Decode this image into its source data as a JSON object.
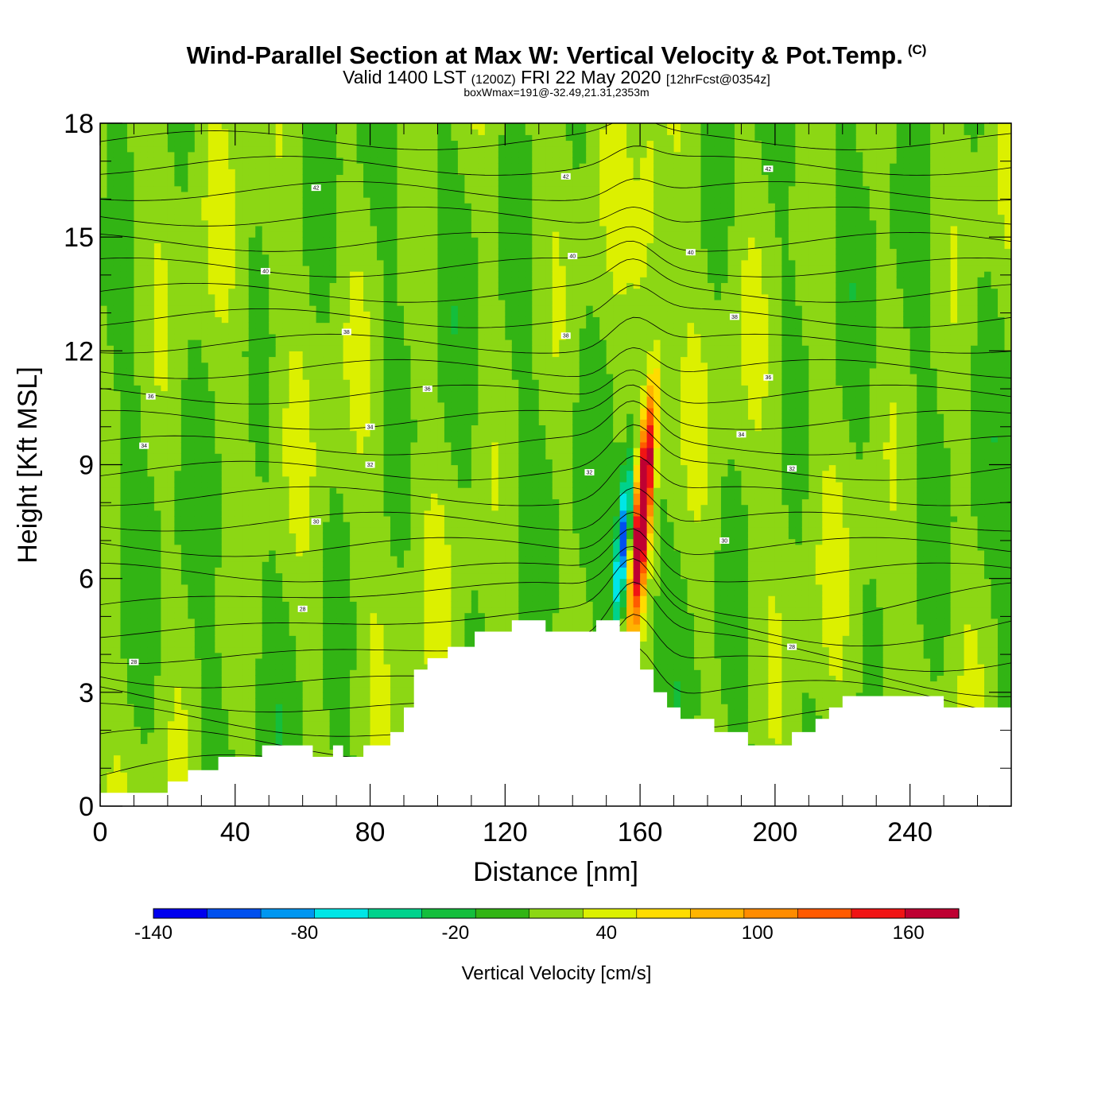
{
  "title": {
    "main": "Wind-Parallel Section at Max W: Vertical Velocity & Pot.Temp.",
    "copyright": "(C)",
    "valid_prefix": "Valid 1400 LST",
    "valid_utc": "(1200Z)",
    "valid_date": "FRI 22 May 2020",
    "forecast": "[12hrFcst@0354z]",
    "box_info": "boxWmax=191@-32.49,21.31,2353m"
  },
  "chart_data": {
    "type": "heatmap",
    "xlabel": "Distance [nm]",
    "ylabel": "Height [Kft MSL]",
    "xlim": [
      0,
      270
    ],
    "ylim": [
      0,
      18
    ],
    "xticks": [
      0,
      40,
      80,
      120,
      160,
      200,
      240
    ],
    "yticks": [
      0,
      3,
      6,
      9,
      12,
      15,
      18
    ],
    "colorbar": {
      "label": "Vertical Velocity [cm/s]",
      "ticks": [
        -140,
        -80,
        -20,
        40,
        100,
        160
      ],
      "range": [
        -140,
        180
      ],
      "step": 20,
      "colors": [
        "#0000ee",
        "#0050ee",
        "#0096f0",
        "#00e6e6",
        "#00d28c",
        "#14be3c",
        "#32b414",
        "#8cd714",
        "#dcf000",
        "#ffdc00",
        "#ffb400",
        "#ff8c00",
        "#ff5a00",
        "#f01414",
        "#be0032"
      ]
    },
    "terrain": [
      [
        0,
        0.35
      ],
      [
        20,
        0.35
      ],
      [
        20,
        0.65
      ],
      [
        26,
        0.65
      ],
      [
        26,
        0.95
      ],
      [
        35,
        0.95
      ],
      [
        35,
        1.3
      ],
      [
        48,
        1.3
      ],
      [
        48,
        1.6
      ],
      [
        63,
        1.6
      ],
      [
        63,
        1.3
      ],
      [
        69,
        1.3
      ],
      [
        69,
        1.6
      ],
      [
        72,
        1.6
      ],
      [
        72,
        1.3
      ],
      [
        78,
        1.3
      ],
      [
        78,
        1.6
      ],
      [
        86,
        1.6
      ],
      [
        86,
        1.95
      ],
      [
        90,
        1.95
      ],
      [
        90,
        2.6
      ],
      [
        93,
        2.6
      ],
      [
        93,
        3.6
      ],
      [
        97,
        3.6
      ],
      [
        97,
        3.9
      ],
      [
        103,
        3.9
      ],
      [
        103,
        4.2
      ],
      [
        111,
        4.2
      ],
      [
        111,
        4.6
      ],
      [
        122,
        4.6
      ],
      [
        122,
        4.9
      ],
      [
        132,
        4.9
      ],
      [
        132,
        4.6
      ],
      [
        147,
        4.6
      ],
      [
        147,
        4.9
      ],
      [
        154,
        4.9
      ],
      [
        154,
        4.6
      ],
      [
        160,
        4.6
      ],
      [
        160,
        3.6
      ],
      [
        164,
        3.6
      ],
      [
        164,
        3.0
      ],
      [
        168,
        3.0
      ],
      [
        168,
        2.6
      ],
      [
        172,
        2.6
      ],
      [
        172,
        2.3
      ],
      [
        182,
        2.3
      ],
      [
        182,
        1.95
      ],
      [
        192,
        1.95
      ],
      [
        192,
        1.6
      ],
      [
        205,
        1.6
      ],
      [
        205,
        1.95
      ],
      [
        212,
        1.95
      ],
      [
        212,
        2.3
      ],
      [
        216,
        2.3
      ],
      [
        216,
        2.6
      ],
      [
        220,
        2.6
      ],
      [
        220,
        2.9
      ],
      [
        250,
        2.9
      ],
      [
        250,
        2.6
      ],
      [
        270,
        2.6
      ]
    ],
    "updraft_core": {
      "x": 161,
      "y": 8.0,
      "max_w": 191
    },
    "downdraft_core": {
      "x": 155,
      "y": 7.0,
      "min_w": -120
    },
    "theta_contour_labels": [
      "28",
      "30",
      "32",
      "34",
      "36",
      "38",
      "40",
      "42"
    ]
  }
}
